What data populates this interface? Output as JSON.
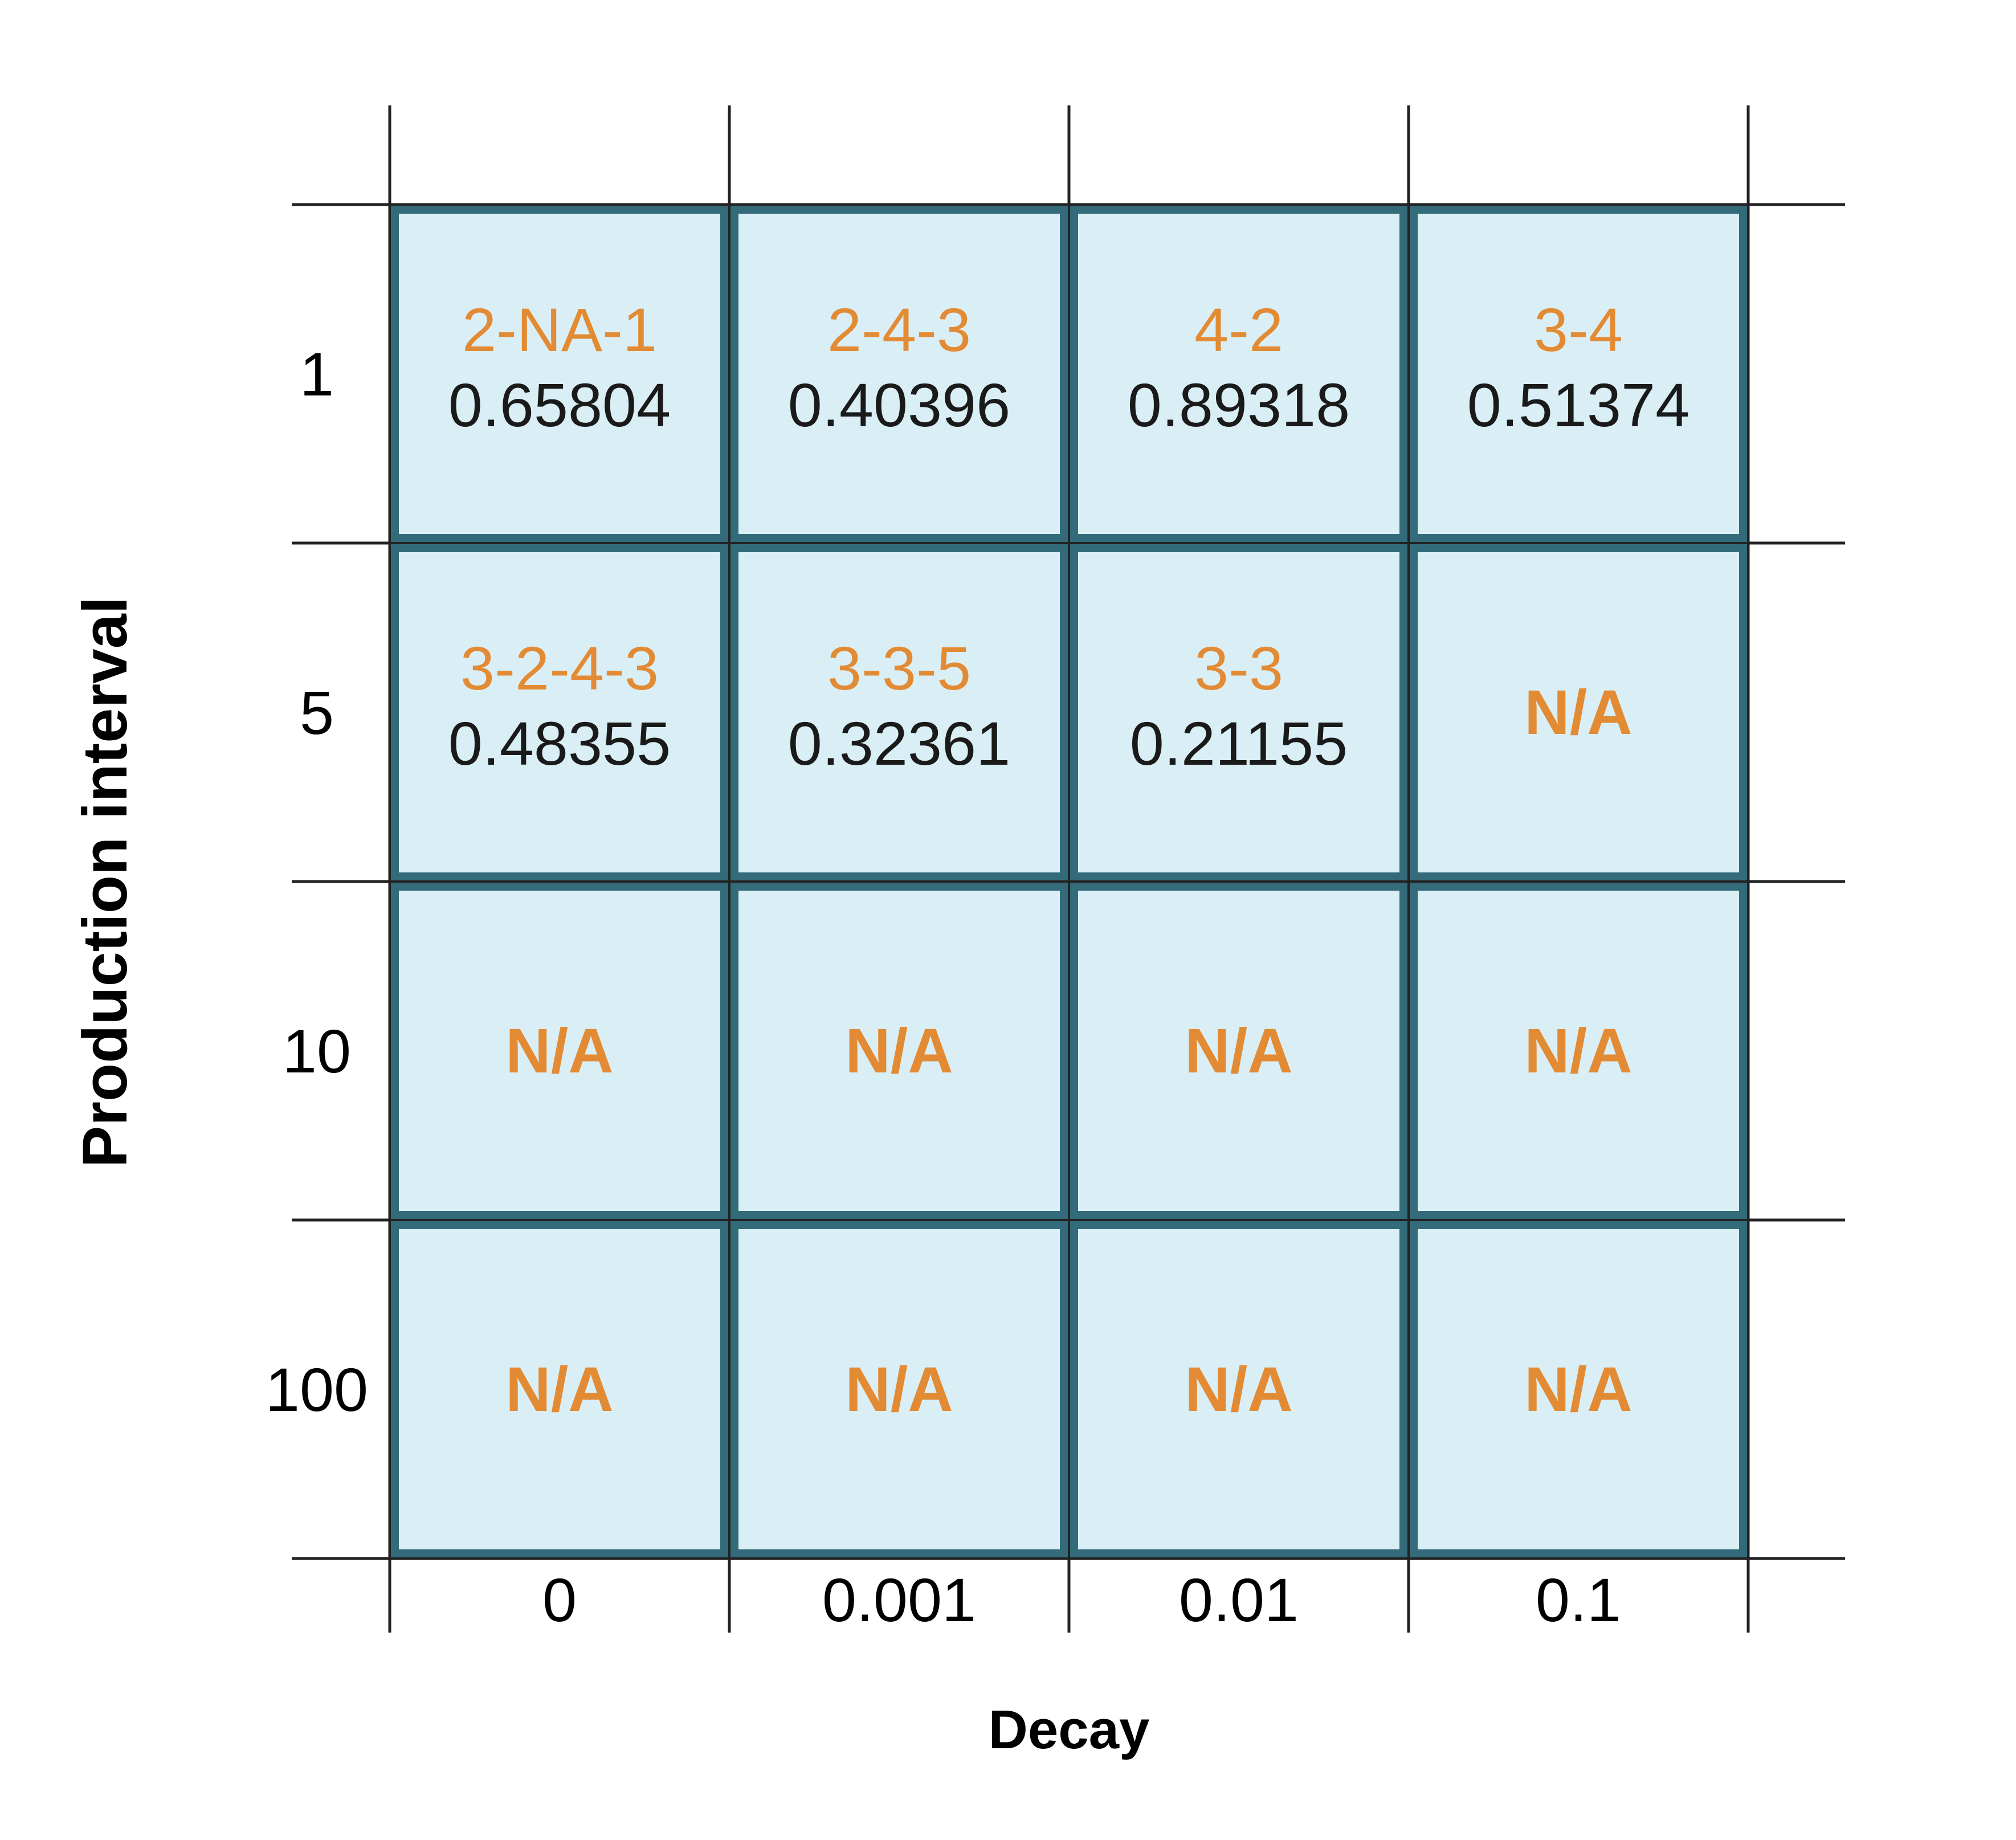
{
  "chart_data": {
    "type": "table",
    "xlabel": "Decay",
    "ylabel": "Production interval",
    "columns": [
      "0",
      "0.001",
      "0.01",
      "0.1"
    ],
    "rows": [
      "1",
      "5",
      "10",
      "100"
    ],
    "cells": [
      [
        {
          "label": "2-NA-1",
          "value": "0.65804"
        },
        {
          "label": "2-4-3",
          "value": "0.40396"
        },
        {
          "label": "4-2",
          "value": "0.89318"
        },
        {
          "label": "3-4",
          "value": "0.51374"
        }
      ],
      [
        {
          "label": "3-2-4-3",
          "value": "0.48355"
        },
        {
          "label": "3-3-5",
          "value": "0.32361"
        },
        {
          "label": "3-3",
          "value": "0.21155"
        },
        {
          "label": "N/A",
          "value": null
        }
      ],
      [
        {
          "label": "N/A",
          "value": null
        },
        {
          "label": "N/A",
          "value": null
        },
        {
          "label": "N/A",
          "value": null
        },
        {
          "label": "N/A",
          "value": null
        }
      ],
      [
        {
          "label": "N/A",
          "value": null
        },
        {
          "label": "N/A",
          "value": null
        },
        {
          "label": "N/A",
          "value": null
        },
        {
          "label": "N/A",
          "value": null
        }
      ]
    ],
    "colors": {
      "cell_fill": "#daeff5",
      "cell_border": "#336b7a",
      "label_text": "#e38b34",
      "value_text": "#1a1a1a",
      "grid_line": "#222222"
    }
  }
}
